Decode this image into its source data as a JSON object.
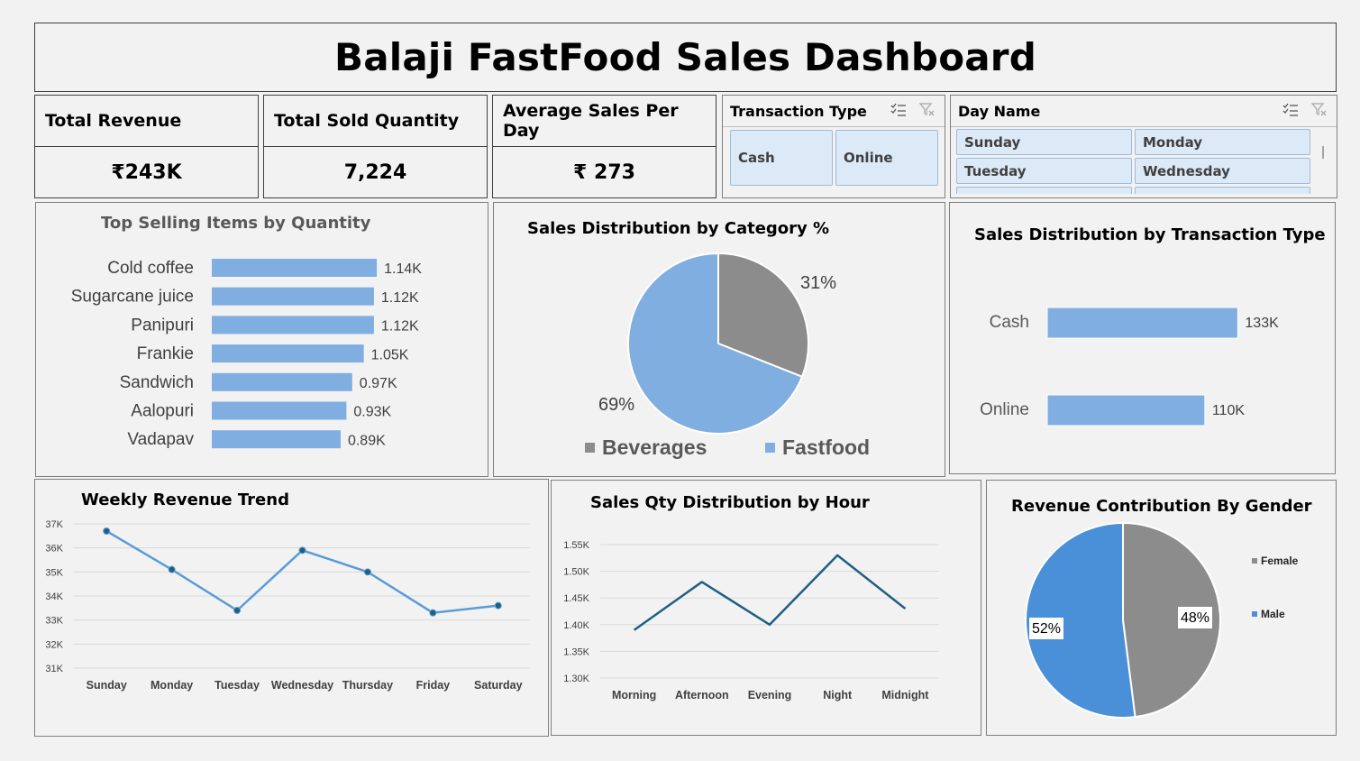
{
  "title": "Balaji FastFood Sales Dashboard",
  "kpis": [
    {
      "label": "Total Revenue",
      "value": "₹243K"
    },
    {
      "label": "Total Sold Quantity",
      "value": "7,224"
    },
    {
      "label": "Average Sales Per Day",
      "value": "₹ 273"
    }
  ],
  "slicers": {
    "transaction": {
      "label": "Transaction Type",
      "items": [
        "Cash",
        "Online"
      ]
    },
    "day": {
      "label": "Day Name",
      "items": [
        "Sunday",
        "Monday",
        "Tuesday",
        "Wednesday"
      ]
    }
  },
  "colors": {
    "blue": "#80aee0",
    "gray": "#8c8c8c",
    "line": "#5b9bd5",
    "dark_line": "#1f5f82",
    "male": "#4a90d9"
  },
  "chart_data": [
    {
      "type": "bar",
      "title": "Top Selling Items by Quantity",
      "orientation": "horizontal",
      "categories": [
        "Cold coffee",
        "Sugarcane juice",
        "Panipuri",
        "Frankie",
        "Sandwich",
        "Aalopuri",
        "Vadapav"
      ],
      "values": [
        1140,
        1120,
        1120,
        1050,
        970,
        930,
        890
      ],
      "data_labels": [
        "1.14K",
        "1.12K",
        "1.12K",
        "1.05K",
        "0.97K",
        "0.93K",
        "0.89K"
      ],
      "xlim": [
        0,
        1600
      ]
    },
    {
      "type": "pie",
      "title": "Sales Distribution by Category %",
      "categories": [
        "Beverages",
        "Fastfood"
      ],
      "values": [
        31,
        69
      ],
      "data_labels": [
        "31%",
        "69%"
      ],
      "legend": "bottom"
    },
    {
      "type": "bar",
      "title": "Sales Distribution by Transaction Type",
      "orientation": "horizontal",
      "categories": [
        "Cash",
        "Online"
      ],
      "values": [
        133,
        110
      ],
      "data_labels": [
        "133K",
        "110K"
      ],
      "xlim": [
        0,
        190
      ]
    },
    {
      "type": "line",
      "title": "Weekly Revenue Trend",
      "categories": [
        "Sunday",
        "Monday",
        "Tuesday",
        "Wednesday",
        "Thursday",
        "Friday",
        "Saturday"
      ],
      "values": [
        36.7,
        35.1,
        33.4,
        35.9,
        35.0,
        33.3,
        33.6
      ],
      "yticks": [
        "37K",
        "36K",
        "35K",
        "34K",
        "33K",
        "32K",
        "31K"
      ],
      "ylim": [
        31,
        37
      ],
      "grid": true
    },
    {
      "type": "line",
      "title": "Sales Qty Distribution by Hour",
      "categories": [
        "Morning",
        "Afternoon",
        "Evening",
        "Night",
        "Midnight"
      ],
      "values": [
        1.39,
        1.48,
        1.4,
        1.53,
        1.43
      ],
      "yticks": [
        "1.55K",
        "1.50K",
        "1.45K",
        "1.40K",
        "1.35K",
        "1.30K"
      ],
      "ylim": [
        1.3,
        1.55
      ],
      "grid": true
    },
    {
      "type": "pie",
      "title": "Revenue Contribution By Gender",
      "categories": [
        "Female",
        "Male"
      ],
      "values": [
        48,
        52
      ],
      "data_labels": [
        "48%",
        "52%"
      ],
      "legend": "right"
    }
  ]
}
